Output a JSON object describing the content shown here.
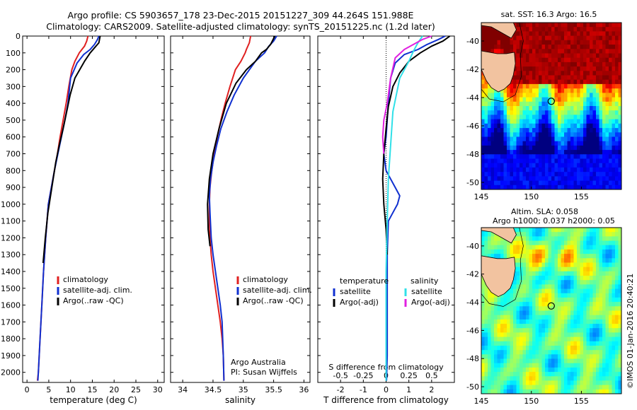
{
  "header": {
    "line1": "Argo profile: CS 5903657_178 23-Dec-2015 20151227_309 44.264S 151.988E",
    "line2": "Climatology: CARS2009. Satellite-adjusted climatology: synTS_20151225.nc (1.2d later)"
  },
  "credit": "©IMOS 01-Jan-2016 20:40:21",
  "colors": {
    "climatology": "#e02020",
    "satellite": "#1030d0",
    "argo": "#000000",
    "sat_salinity": "#30e0e8",
    "argo_salinity": "#e020e0",
    "land": "#f2c3a0"
  },
  "chart_data": [
    {
      "type": "line",
      "xlabel": "temperature (deg C)",
      "ylabel": "",
      "xlim": [
        -1,
        31.5
      ],
      "ylim": [
        2060,
        0
      ],
      "xticks": [
        "0",
        "5",
        "10",
        "15",
        "20",
        "25",
        "30"
      ],
      "yticks": [
        "0",
        "100",
        "200",
        "300",
        "400",
        "500",
        "600",
        "700",
        "800",
        "900",
        "1000",
        "1100",
        "1200",
        "1300",
        "1400",
        "1500",
        "1600",
        "1700",
        "1800",
        "1900",
        "2000"
      ],
      "legend": [
        "climatology",
        "satellite-adj. clim.",
        "Argo(..raw -QC)"
      ],
      "series": [
        {
          "name": "climatology",
          "color": "#e02020",
          "x": [
            14.0,
            13.7,
            13.2,
            12.0,
            11.0,
            10.3,
            9.6,
            9.0,
            8.3,
            7.6,
            7.0,
            6.3,
            5.6,
            4.9,
            4.3,
            3.8,
            3.4,
            3.0,
            2.8,
            2.6,
            2.4
          ],
          "y": [
            0,
            30,
            60,
            100,
            150,
            200,
            300,
            400,
            500,
            600,
            700,
            800,
            900,
            1000,
            1200,
            1400,
            1600,
            1800,
            1900,
            2000,
            2050
          ]
        },
        {
          "name": "satellite-adj. clim.",
          "color": "#1030d0",
          "x": [
            16.5,
            16.2,
            15.5,
            14.5,
            13.0,
            11.5,
            10.0,
            9.4,
            8.7,
            7.9,
            7.1,
            6.3,
            5.6,
            4.9,
            4.3,
            3.8,
            3.4,
            3.0,
            2.8,
            2.6,
            2.5
          ],
          "y": [
            0,
            20,
            50,
            80,
            110,
            160,
            250,
            400,
            500,
            600,
            700,
            800,
            900,
            1000,
            1200,
            1400,
            1600,
            1800,
            1900,
            2000,
            2050
          ]
        },
        {
          "name": "Argo(..raw -QC)",
          "color": "#000000",
          "x": [
            16.8,
            16.5,
            15.5,
            14.5,
            13.2,
            11.0,
            9.9,
            9.1,
            8.3,
            7.4,
            6.6,
            6.0,
            5.4,
            4.8,
            4.2,
            3.7
          ],
          "y": [
            0,
            40,
            70,
            100,
            150,
            250,
            350,
            450,
            550,
            650,
            750,
            850,
            950,
            1050,
            1200,
            1350
          ]
        }
      ]
    },
    {
      "type": "line",
      "xlabel": "salinity",
      "ylabel": "",
      "xlim": [
        33.8,
        36.1
      ],
      "ylim": [
        2060,
        0
      ],
      "xticks": [
        "34",
        "34.5",
        "35",
        "35.5",
        "36"
      ],
      "legend": [
        "climatology",
        "satellite-adj. clim.",
        "Argo(..raw -QC)"
      ],
      "annotation": [
        "Argo Australia",
        "PI: Susan Wijffels"
      ],
      "series": [
        {
          "name": "climatology",
          "color": "#e02020",
          "x": [
            35.12,
            35.1,
            35.05,
            35.03,
            34.96,
            34.87,
            34.78,
            34.7,
            34.63,
            34.57,
            34.52,
            34.48,
            34.45,
            34.44,
            34.44,
            34.45,
            34.47,
            34.5,
            34.54,
            34.58,
            34.62,
            34.65,
            34.67,
            34.68
          ],
          "y": [
            0,
            40,
            80,
            100,
            150,
            200,
            300,
            400,
            500,
            600,
            700,
            800,
            900,
            1000,
            1100,
            1200,
            1300,
            1400,
            1500,
            1600,
            1700,
            1800,
            1900,
            2050
          ]
        },
        {
          "name": "satellite-adj. clim.",
          "color": "#1030d0",
          "x": [
            35.55,
            35.5,
            35.42,
            35.35,
            35.2,
            35.0,
            34.85,
            34.73,
            34.63,
            34.56,
            34.5,
            34.46,
            34.44,
            34.45,
            34.47,
            34.5,
            34.54,
            34.58,
            34.62,
            34.65,
            34.67,
            34.68
          ],
          "y": [
            0,
            30,
            60,
            100,
            150,
            250,
            350,
            450,
            550,
            650,
            750,
            850,
            950,
            1050,
            1200,
            1300,
            1400,
            1500,
            1600,
            1700,
            1900,
            2050
          ]
        },
        {
          "name": "Argo(..raw -QC)",
          "color": "#000000",
          "x": [
            35.52,
            35.45,
            35.38,
            35.3,
            35.2,
            35.05,
            34.88,
            34.72,
            34.6,
            34.5,
            34.44,
            34.41,
            34.42,
            34.45
          ],
          "y": [
            0,
            50,
            80,
            100,
            150,
            200,
            280,
            400,
            550,
            700,
            850,
            1000,
            1150,
            1250
          ]
        }
      ]
    },
    {
      "type": "line",
      "xlabel": "T difference from climatology",
      "xlabel_top": "S difference from climatology",
      "xlim": [
        -3,
        3
      ],
      "ylim": [
        2060,
        0
      ],
      "xticks": [
        "-2",
        "-1",
        "0",
        "1",
        "2"
      ],
      "xticks_top": [
        "-0.5",
        "-0.25",
        "0",
        "0.25",
        "0.5"
      ],
      "legend": [
        {
          "group": "temperature",
          "items": [
            "satellite",
            "Argo(-adj)"
          ]
        },
        {
          "group": "salinity",
          "items": [
            "satellite",
            "Argo(-adj)"
          ]
        }
      ],
      "series": [
        {
          "name": "T satellite",
          "color": "#1030d0",
          "x": [
            2.6,
            2.3,
            1.8,
            1.4,
            0.8,
            0.4,
            0.2,
            0.1,
            0.05,
            0.0,
            -0.1,
            0.0,
            0.2,
            0.4,
            0.6,
            0.5,
            0.3,
            0.1,
            0.05,
            0.05,
            0.05,
            0.02
          ],
          "y": [
            0,
            20,
            50,
            80,
            110,
            160,
            250,
            400,
            500,
            600,
            700,
            800,
            850,
            900,
            950,
            1000,
            1050,
            1100,
            1300,
            1600,
            1900,
            2050
          ]
        },
        {
          "name": "T Argo(-adj)",
          "color": "#000000",
          "x": [
            2.8,
            2.5,
            2.0,
            1.5,
            1.0,
            0.6,
            0.3,
            0.1,
            0.0,
            -0.1,
            -0.15,
            -0.1,
            0.0,
            0.05
          ],
          "y": [
            0,
            30,
            60,
            100,
            150,
            220,
            300,
            420,
            550,
            700,
            850,
            1000,
            1150,
            1300
          ]
        },
        {
          "name": "S satellite",
          "color": "#30e0e8",
          "x": [
            1.6,
            1.4,
            1.2,
            1.0,
            0.6,
            0.3,
            0.2,
            0.1,
            0.05,
            0.0,
            0.0
          ],
          "y": [
            0,
            40,
            90,
            150,
            250,
            450,
            650,
            850,
            1100,
            1400,
            2050
          ]
        },
        {
          "name": "S Argo(-adj)",
          "color": "#e020e0",
          "x": [
            2.0,
            1.6,
            1.2,
            0.8,
            0.4,
            0.2,
            0.05,
            -0.1,
            -0.15,
            -0.1
          ],
          "y": [
            0,
            20,
            50,
            80,
            130,
            250,
            400,
            500,
            600,
            700
          ]
        }
      ]
    },
    {
      "type": "heatmap",
      "title": "sat. SST: 16.3 Argo: 16.5",
      "xlim": [
        145,
        159
      ],
      "ylim": [
        -50.5,
        -38.7
      ],
      "xticks": [
        "145",
        "150",
        "155"
      ],
      "yticks": [
        "-40",
        "-42",
        "-44",
        "-46",
        "-48",
        "-50"
      ],
      "float_position": {
        "lon": 151.988,
        "lat": -44.264
      }
    },
    {
      "type": "heatmap",
      "title": "Altim. SLA: 0.058",
      "subtitle": "Argo h1000: 0.037 h2000: 0.05",
      "xlim": [
        145,
        159
      ],
      "ylim": [
        -50.5,
        -38.7
      ],
      "xticks": [
        "145",
        "150",
        "155"
      ],
      "yticks": [
        "-40",
        "-42",
        "-44",
        "-46",
        "-48",
        "-50"
      ],
      "float_position": {
        "lon": 151.988,
        "lat": -44.264
      }
    }
  ]
}
